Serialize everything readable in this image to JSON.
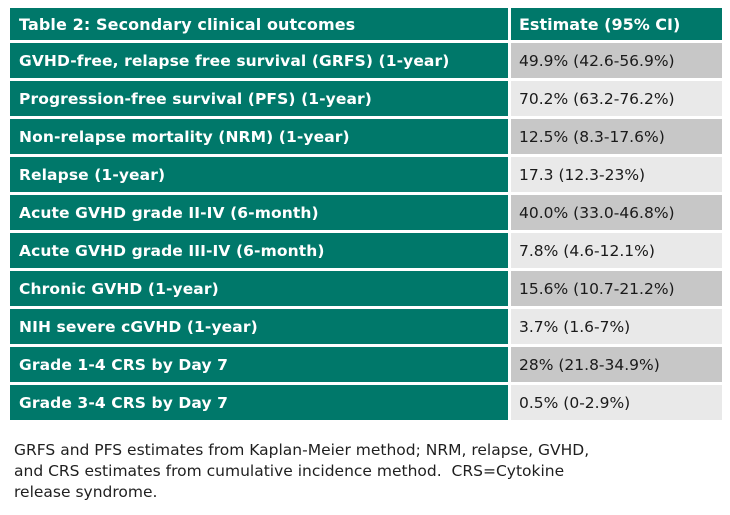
{
  "table": {
    "title": "Table 2: Secondary clinical outcomes",
    "value_header": "Estimate (95% CI)",
    "rows": [
      {
        "label": "GVHD-free, relapse free survival (GRFS) (1-year)",
        "value": "49.9% (42.6-56.9%)"
      },
      {
        "label": "Progression-free survival (PFS) (1-year)",
        "value": "70.2% (63.2-76.2%)"
      },
      {
        "label": "Non-relapse mortality (NRM) (1-year)",
        "value": "12.5% (8.3-17.6%)"
      },
      {
        "label": "Relapse (1-year)",
        "value": "17.3 (12.3-23%)"
      },
      {
        "label": "Acute GVHD grade II-IV (6-month)",
        "value": "40.0% (33.0-46.8%)"
      },
      {
        "label": "Acute GVHD grade III-IV (6-month)",
        "value": "7.8% (4.6-12.1%)"
      },
      {
        "label": "Chronic GVHD (1-year)",
        "value": "15.6% (10.7-21.2%)"
      },
      {
        "label": "NIH severe cGVHD (1-year)",
        "value": "3.7% (1.6-7%)"
      },
      {
        "label": "Grade 1-4 CRS by Day 7",
        "value": "28% (21.8-34.9%)"
      },
      {
        "label": "Grade 3-4 CRS by Day 7",
        "value": "0.5% (0-2.9%)"
      }
    ]
  },
  "footnote": {
    "lines": [
      "GRFS and PFS estimates from Kaplan-Meier method; NRM, relapse, GVHD,",
      "and CRS estimates from cumulative incidence method.  CRS=Cytokine",
      "release syndrome."
    ]
  },
  "colors": {
    "header_teal": "#00786a",
    "value_row_dark": "#c7c7c7",
    "value_row_light": "#e9e9e9",
    "label_text": "#ffffff",
    "value_text": "#1a1a1a"
  }
}
